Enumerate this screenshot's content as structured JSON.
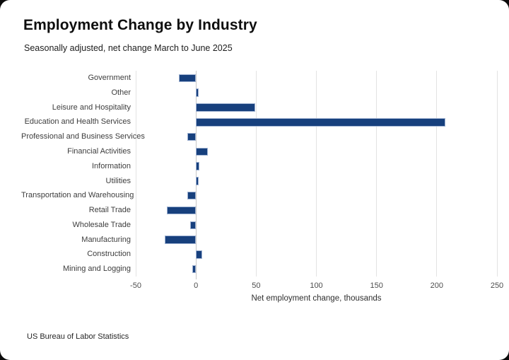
{
  "header": {
    "title": "Employment Change by Industry",
    "subtitle": "Seasonally adjusted, net change March to June 2025"
  },
  "footer": {
    "source": "US Bureau of Labor Statistics"
  },
  "chart_data": {
    "type": "bar",
    "orientation": "horizontal",
    "title": "Employment Change by Industry",
    "subtitle": "Seasonally adjusted, net change March to June 2025",
    "categories": [
      "Government",
      "Other",
      "Leisure and Hospitality",
      "Education and Health Services",
      "Professional and Business Services",
      "Financial Activities",
      "Information",
      "Utilities",
      "Transportation and Warehousing",
      "Retail Trade",
      "Wholesale Trade",
      "Manufacturing",
      "Construction",
      "Mining and Logging"
    ],
    "values": [
      -14,
      2,
      49,
      207,
      -7,
      10,
      3,
      2,
      -7,
      -24,
      -5,
      -26,
      5,
      -3
    ],
    "xlabel": "Net employment change, thousands",
    "xticks": [
      -50,
      0,
      50,
      100,
      150,
      200,
      250
    ],
    "xlim": [
      -50,
      250
    ],
    "grid": true,
    "legend": false,
    "bar_color": "#17407d",
    "bar_border_color": "#9fb2d2",
    "gridline_color": "#e3e3e3",
    "zero_line_color": "#c7c7c7"
  }
}
